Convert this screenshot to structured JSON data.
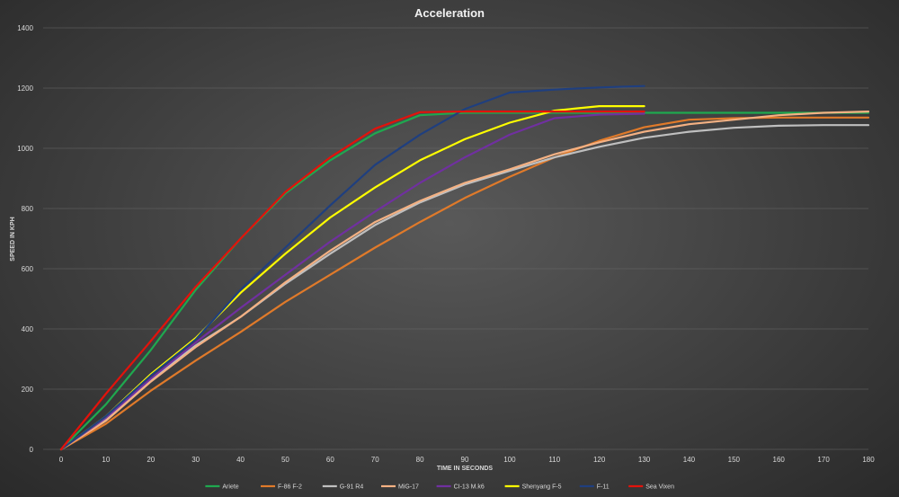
{
  "chart_data": {
    "type": "line",
    "title": "Acceleration",
    "xlabel": "TIME IN SECONDS",
    "ylabel": "SPEED IN KPH",
    "xlim": [
      0,
      180
    ],
    "ylim": [
      0,
      1400
    ],
    "xticks": [
      0,
      10,
      20,
      30,
      40,
      50,
      60,
      70,
      80,
      90,
      100,
      110,
      120,
      130,
      140,
      150,
      160,
      170,
      180
    ],
    "yticks": [
      0,
      200,
      400,
      600,
      800,
      1000,
      1200,
      1400
    ],
    "grid": "horizontal",
    "legend": "bottom",
    "series": [
      {
        "name": "Ariete",
        "color": "#1fa84f",
        "x": [
          0,
          10,
          20,
          30,
          40,
          50,
          60,
          70,
          80,
          90,
          100,
          110,
          120,
          130,
          140,
          150,
          160,
          170,
          180
        ],
        "y": [
          0,
          150,
          330,
          530,
          700,
          850,
          960,
          1050,
          1110,
          1118,
          1118,
          1118,
          1118,
          1118,
          1118,
          1118,
          1118,
          1118,
          1118
        ]
      },
      {
        "name": "F-86 F-2",
        "color": "#e07a2a",
        "x": [
          0,
          10,
          20,
          30,
          40,
          50,
          60,
          70,
          80,
          90,
          100,
          110,
          120,
          130,
          140,
          150,
          160,
          170,
          180
        ],
        "y": [
          0,
          85,
          195,
          295,
          390,
          490,
          580,
          670,
          755,
          835,
          905,
          970,
          1025,
          1070,
          1095,
          1100,
          1102,
          1102,
          1102
        ]
      },
      {
        "name": "G-91 R4",
        "color": "#bfbfbf",
        "x": [
          0,
          10,
          20,
          30,
          40,
          50,
          60,
          70,
          80,
          90,
          100,
          110,
          120,
          130,
          140,
          150,
          160,
          170,
          180
        ],
        "y": [
          0,
          100,
          230,
          345,
          440,
          550,
          650,
          745,
          820,
          880,
          925,
          970,
          1005,
          1035,
          1055,
          1068,
          1075,
          1077,
          1077
        ]
      },
      {
        "name": "MiG-17",
        "color": "#f4b183",
        "x": [
          0,
          10,
          20,
          30,
          40,
          50,
          60,
          70,
          80,
          90,
          100,
          110,
          120,
          130,
          140,
          150,
          160,
          170,
          180
        ],
        "y": [
          0,
          95,
          225,
          340,
          440,
          555,
          660,
          755,
          825,
          885,
          930,
          980,
          1020,
          1055,
          1080,
          1095,
          1110,
          1118,
          1122
        ]
      },
      {
        "name": "CI-13 M.k6",
        "color": "#7030a0",
        "x": [
          0,
          10,
          20,
          30,
          40,
          50,
          60,
          70,
          80,
          90,
          100,
          110,
          120,
          130
        ],
        "y": [
          0,
          105,
          235,
          355,
          470,
          580,
          690,
          790,
          885,
          970,
          1045,
          1100,
          1112,
          1115
        ]
      },
      {
        "name": "Shenyang F-5",
        "color": "#ffff00",
        "x": [
          0,
          10,
          20,
          30,
          40,
          50,
          60,
          70,
          80,
          90,
          100,
          110,
          120,
          130
        ],
        "y": [
          0,
          110,
          250,
          370,
          520,
          650,
          770,
          870,
          960,
          1030,
          1085,
          1125,
          1140,
          1140
        ]
      },
      {
        "name": "F-11",
        "color": "#1f3f7f",
        "x": [
          0,
          10,
          20,
          30,
          40,
          50,
          60,
          70,
          80,
          90,
          100,
          110,
          120,
          130
        ],
        "y": [
          0,
          110,
          245,
          365,
          530,
          670,
          810,
          945,
          1045,
          1130,
          1185,
          1195,
          1202,
          1207
        ]
      },
      {
        "name": "Sea Vixen",
        "color": "#e3120b",
        "x": [
          0,
          10,
          20,
          30,
          40,
          50,
          60,
          70,
          80,
          90,
          100,
          110,
          120,
          130
        ],
        "y": [
          0,
          185,
          360,
          540,
          700,
          855,
          970,
          1065,
          1120,
          1122,
          1122,
          1122,
          1122,
          1122
        ]
      }
    ]
  }
}
